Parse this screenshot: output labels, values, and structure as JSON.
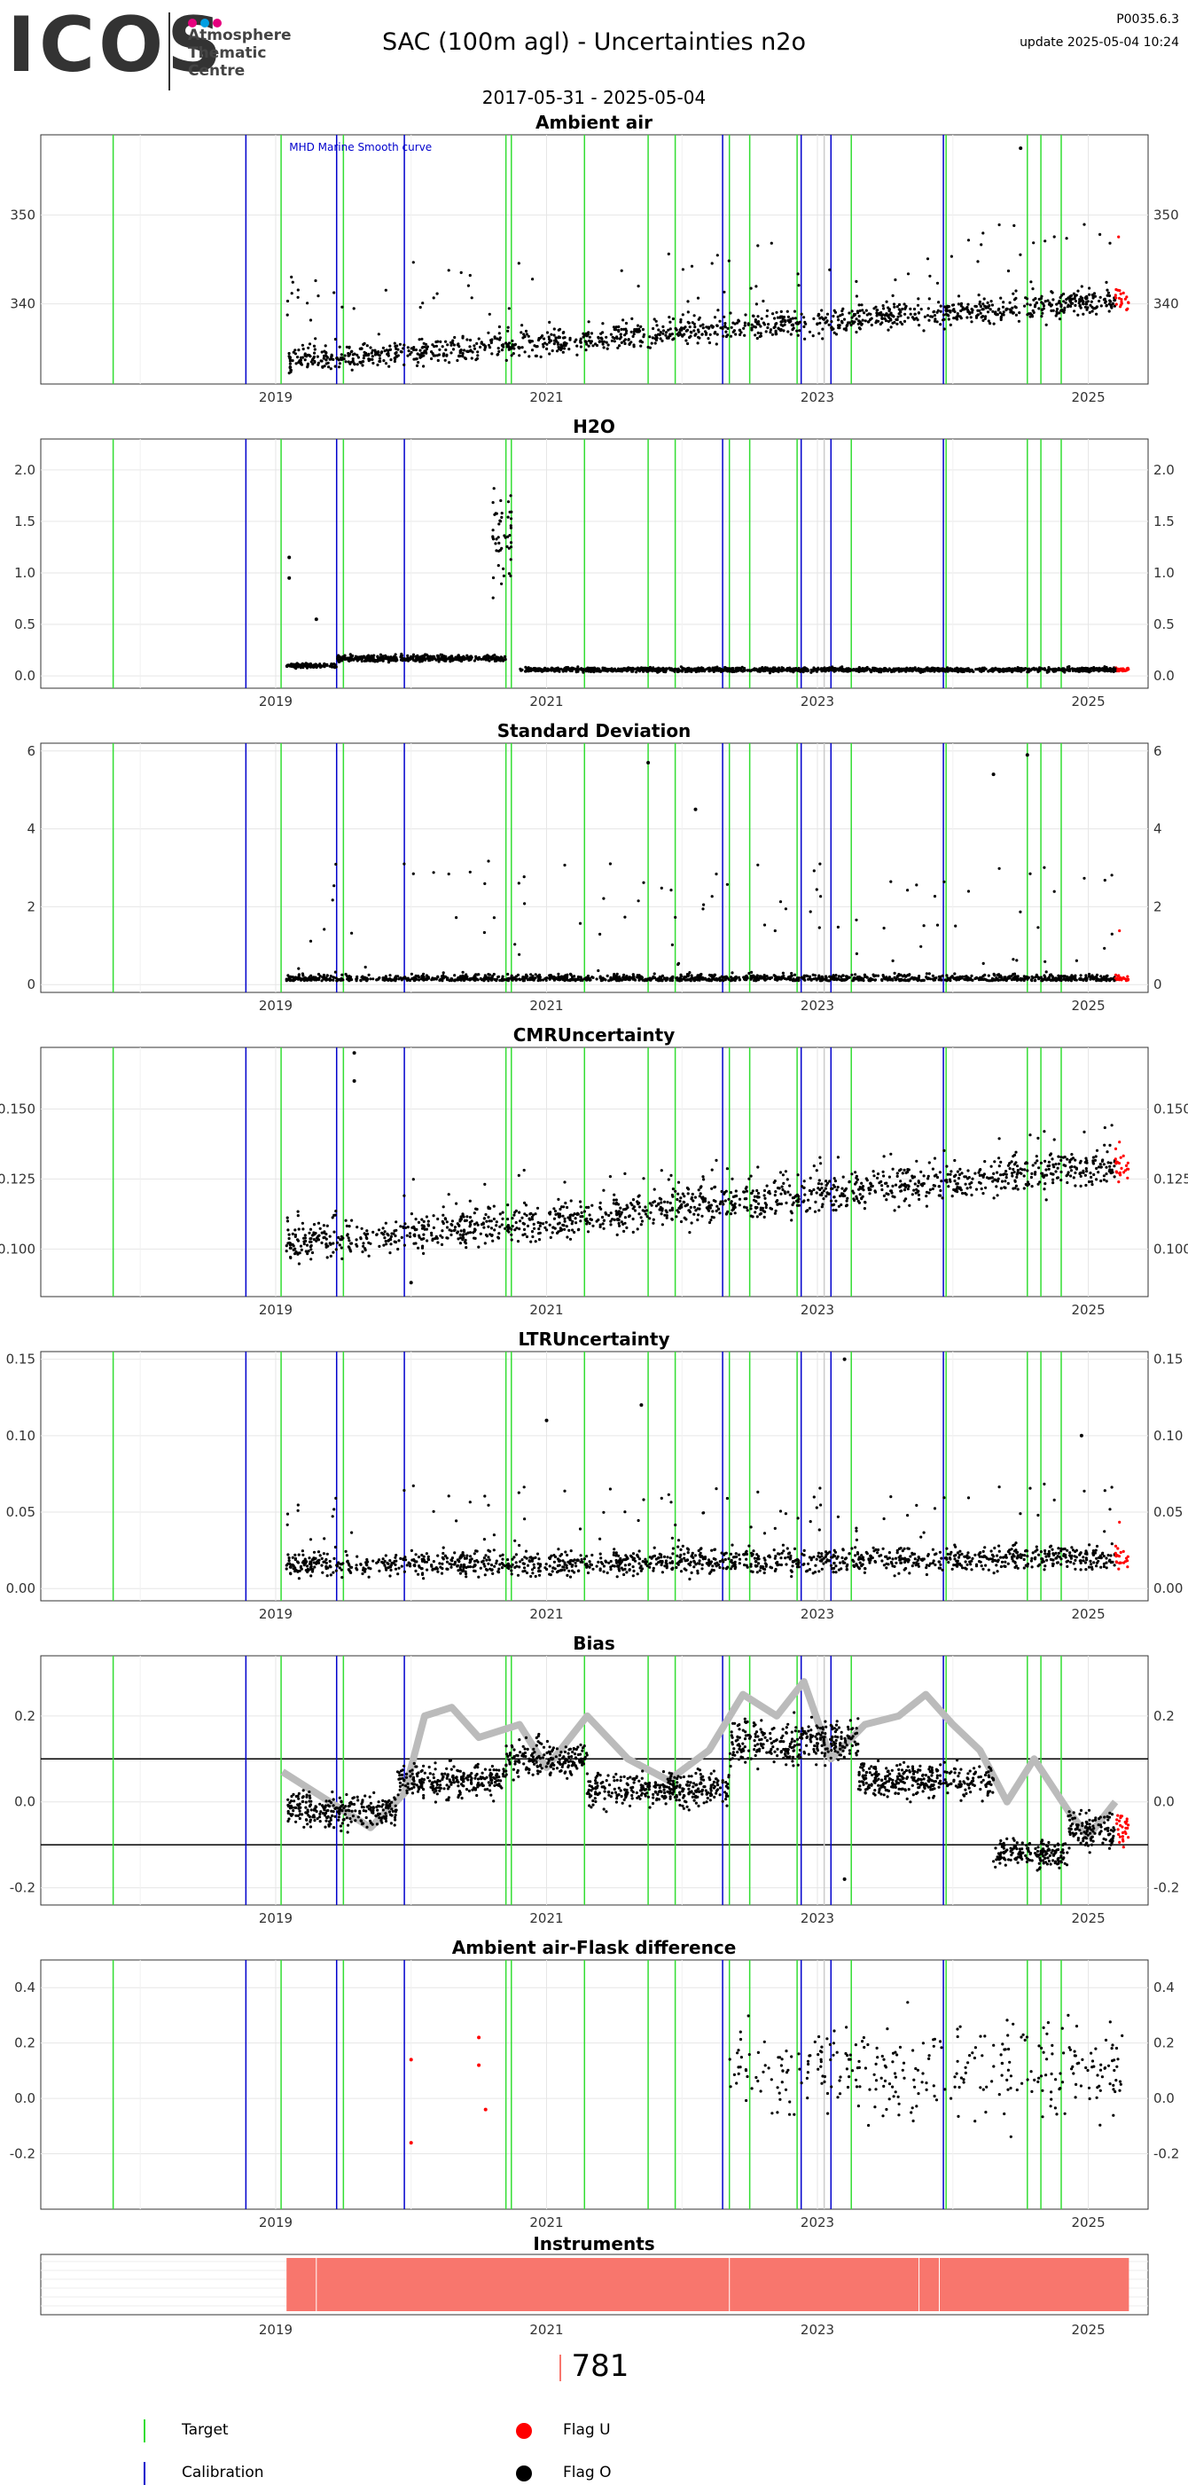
{
  "header": {
    "logo_text": "ICOS",
    "logo_sub": "Atmosphere\nThematic\nCentre",
    "title": "SAC  (100m agl) - Uncertainties n2o",
    "code": "P0035.6.3",
    "update": "update  2025-05-04 10:24",
    "date_range": "2017-05-31 - 2025-05-04"
  },
  "colors": {
    "target": "#33dd33",
    "calibration": "#0000cc",
    "flag_u": "#ff0000",
    "flag_o": "#000000",
    "model_line": "#bbbbbb",
    "instrument_bar": "#f8766d",
    "grid": "#e6e6e6"
  },
  "timeline": {
    "x_start": "2017-05-31",
    "x_end": "2025-05-04",
    "year_ticks": [
      "2019",
      "2021",
      "2023",
      "2025"
    ],
    "target_lines": [
      2017.8,
      2019.04,
      2019.5,
      2020.7,
      2020.74,
      2021.28,
      2021.75,
      2021.95,
      2022.35,
      2022.5,
      2022.85,
      2023.25,
      2023.95,
      2024.55,
      2024.65,
      2024.8
    ],
    "calibration_lines": [
      2018.78,
      2019.45,
      2019.95,
      2022.3,
      2022.88,
      2023.1,
      2023.93
    ],
    "gray_lines": [
      2023.05
    ]
  },
  "chart_data": [
    {
      "type": "scatter",
      "title": "Ambient air",
      "annotation": "MHD Marine Smooth curve",
      "y_ticks": [
        "340",
        "350"
      ],
      "ylim": [
        331,
        359
      ],
      "baseline_start": 333.5,
      "baseline_end": 340.5,
      "noise": 1.8,
      "spikes": 4,
      "extra_points": [
        [
          2024.5,
          357.5
        ]
      ]
    },
    {
      "type": "scatter",
      "title": "H2O",
      "y_ticks": [
        "0.0",
        "0.5",
        "1.0",
        "1.5",
        "2.0"
      ],
      "ylim": [
        -0.12,
        2.3
      ],
      "segments": [
        {
          "x0": 2019.08,
          "x1": 2019.45,
          "y": 0.1,
          "noise": 0.02
        },
        {
          "x0": 2019.45,
          "x1": 2020.7,
          "y": 0.17,
          "noise": 0.03
        },
        {
          "x0": 2020.6,
          "x1": 2020.75,
          "y": 1.3,
          "noise": 0.5
        },
        {
          "x0": 2020.8,
          "x1": 2025.3,
          "y": 0.06,
          "noise": 0.02
        }
      ],
      "extra_points": [
        [
          2019.1,
          1.15
        ],
        [
          2019.1,
          0.95
        ],
        [
          2019.3,
          0.55
        ]
      ]
    },
    {
      "type": "scatter",
      "title": "Standard Deviation",
      "y_ticks": [
        "0",
        "2",
        "4",
        "6"
      ],
      "ylim": [
        -0.2,
        6.2
      ],
      "baseline_start": 0.1,
      "baseline_end": 0.1,
      "noise": 0.15,
      "spikes": 3,
      "extra_points": [
        [
          2024.55,
          5.9
        ],
        [
          2021.75,
          5.7
        ],
        [
          2022.1,
          4.5
        ],
        [
          2024.3,
          5.4
        ]
      ]
    },
    {
      "type": "scatter",
      "title": "CMRUncertainty",
      "y_ticks": [
        "0.100",
        "0.125",
        "0.150"
      ],
      "ylim": [
        0.083,
        0.172
      ],
      "baseline_start": 0.101,
      "baseline_end": 0.13,
      "noise": 0.008,
      "spikes": 0.015,
      "extra_points": [
        [
          2019.58,
          0.17
        ],
        [
          2019.58,
          0.16
        ],
        [
          2020.0,
          0.088
        ]
      ]
    },
    {
      "type": "scatter",
      "title": "LTRUncertainty",
      "y_ticks": [
        "0.00",
        "0.05",
        "0.10",
        "0.15"
      ],
      "ylim": [
        -0.008,
        0.155
      ],
      "baseline_start": 0.015,
      "baseline_end": 0.02,
      "noise": 0.01,
      "spikes": 0.05,
      "extra_points": [
        [
          2023.2,
          0.15
        ],
        [
          2021.0,
          0.11
        ],
        [
          2024.95,
          0.1
        ],
        [
          2021.7,
          0.12
        ]
      ]
    },
    {
      "type": "scatter",
      "title": "Bias",
      "y_ticks": [
        "-0.2",
        "0.0",
        "0.2"
      ],
      "ylim": [
        -0.24,
        0.34
      ],
      "hlines": [
        0.1,
        -0.1
      ],
      "segments": [
        {
          "x0": 2019.08,
          "x1": 2019.9,
          "y": -0.02,
          "noise": 0.04
        },
        {
          "x0": 2019.9,
          "x1": 2020.7,
          "y": 0.05,
          "noise": 0.04
        },
        {
          "x0": 2020.7,
          "x1": 2021.3,
          "y": 0.1,
          "noise": 0.04
        },
        {
          "x0": 2021.3,
          "x1": 2022.35,
          "y": 0.03,
          "noise": 0.04
        },
        {
          "x0": 2022.35,
          "x1": 2023.3,
          "y": 0.14,
          "noise": 0.05
        },
        {
          "x0": 2023.3,
          "x1": 2024.3,
          "y": 0.05,
          "noise": 0.04
        },
        {
          "x0": 2024.3,
          "x1": 2024.85,
          "y": -0.12,
          "noise": 0.03
        },
        {
          "x0": 2024.85,
          "x1": 2025.3,
          "y": -0.06,
          "noise": 0.04
        }
      ],
      "model_line": [
        [
          2019.05,
          0.07
        ],
        [
          2019.3,
          0.02
        ],
        [
          2019.5,
          -0.02
        ],
        [
          2019.7,
          -0.06
        ],
        [
          2019.95,
          0.02
        ],
        [
          2020.1,
          0.2
        ],
        [
          2020.3,
          0.22
        ],
        [
          2020.5,
          0.15
        ],
        [
          2020.8,
          0.18
        ],
        [
          2021.0,
          0.08
        ],
        [
          2021.3,
          0.2
        ],
        [
          2021.6,
          0.1
        ],
        [
          2021.9,
          0.05
        ],
        [
          2022.2,
          0.12
        ],
        [
          2022.45,
          0.25
        ],
        [
          2022.7,
          0.2
        ],
        [
          2022.9,
          0.28
        ],
        [
          2023.1,
          0.1
        ],
        [
          2023.35,
          0.18
        ],
        [
          2023.6,
          0.2
        ],
        [
          2023.8,
          0.25
        ],
        [
          2024.0,
          0.18
        ],
        [
          2024.2,
          0.12
        ],
        [
          2024.4,
          0.0
        ],
        [
          2024.6,
          0.1
        ],
        [
          2024.85,
          -0.02
        ],
        [
          2025.0,
          -0.08
        ],
        [
          2025.2,
          0.0
        ]
      ],
      "extra_points": [
        [
          2023.2,
          -0.18
        ]
      ]
    },
    {
      "type": "scatter",
      "title": "Ambient air-Flask difference",
      "y_ticks": [
        "-0.2",
        "0.0",
        "0.2",
        "0.4"
      ],
      "ylim": [
        -0.4,
        0.5
      ],
      "random_points": {
        "x0": 2022.35,
        "x1": 2025.25,
        "count": 320,
        "y_center": 0.1,
        "y_spread": 0.18
      },
      "flag_points": [
        [
          2020.0,
          0.14
        ],
        [
          2020.0,
          -0.16
        ],
        [
          2020.5,
          0.22
        ],
        [
          2020.5,
          0.12
        ],
        [
          2020.55,
          -0.04
        ]
      ]
    }
  ],
  "instruments": {
    "title": "Instruments",
    "count": "781",
    "bar_start": 2019.08,
    "bar_end": 2025.3
  },
  "legend": {
    "target": "Target",
    "calibration": "Calibration",
    "flag_u": "Flag U",
    "flag_o": "Flag O"
  }
}
